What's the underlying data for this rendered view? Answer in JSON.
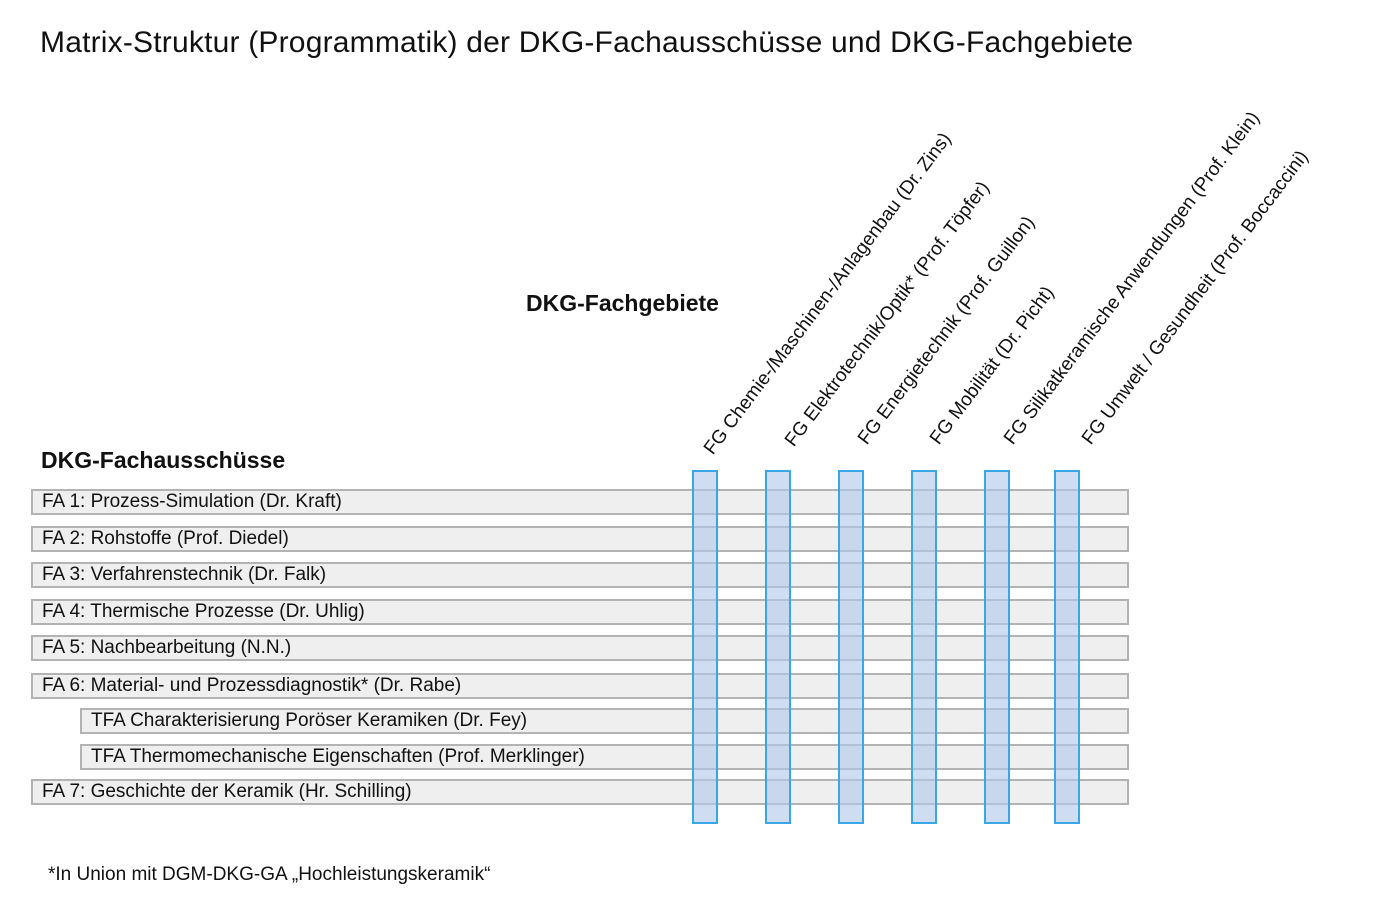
{
  "title": "Matrix-Struktur (Programmatik) der DKG-Fachausschüsse  und DKG-Fachgebiete",
  "fachgebiete": {
    "heading": "DKG-Fachgebiete",
    "items": [
      "FG Chemie-/Maschinen-/Anlagenbau (Dr. Zins)",
      "FG Elektrotechnik/Optik* (Prof. Töpfer)",
      "FG Energietechnik (Prof. Guillon)",
      "FG Mobilität (Dr. Picht)",
      "FG Silikatkeramische Anwendungen (Prof. Klein)",
      "FG Umwelt / Gesundheit (Prof. Boccaccini)"
    ]
  },
  "fachausschuesse": {
    "heading": "DKG-Fachausschüsse",
    "items": [
      "FA 1: Prozess-Simulation (Dr. Kraft)",
      "FA 2: Rohstoffe (Prof. Diedel)",
      "FA 3: Verfahrenstechnik (Dr. Falk)",
      "FA 4: Thermische Prozesse (Dr. Uhlig)",
      "FA 5: Nachbearbeitung (N.N.)",
      "FA 6: Material- und Prozessdiagnostik* (Dr. Rabe)",
      "TFA Charakterisierung Poröser Keramiken (Dr. Fey)",
      "TFA Thermomechanische Eigenschaften  (Prof. Merklinger)",
      "FA 7: Geschichte der Keramik (Hr. Schilling)"
    ]
  },
  "footnote": "*In Union mit DGM-DKG-GA „Hochleistungskeramik“",
  "colors": {
    "row_fill": "#efefef",
    "row_border": "#b3b3b3",
    "column_fill": "#b0c8e8",
    "column_border": "#39a6e6"
  }
}
